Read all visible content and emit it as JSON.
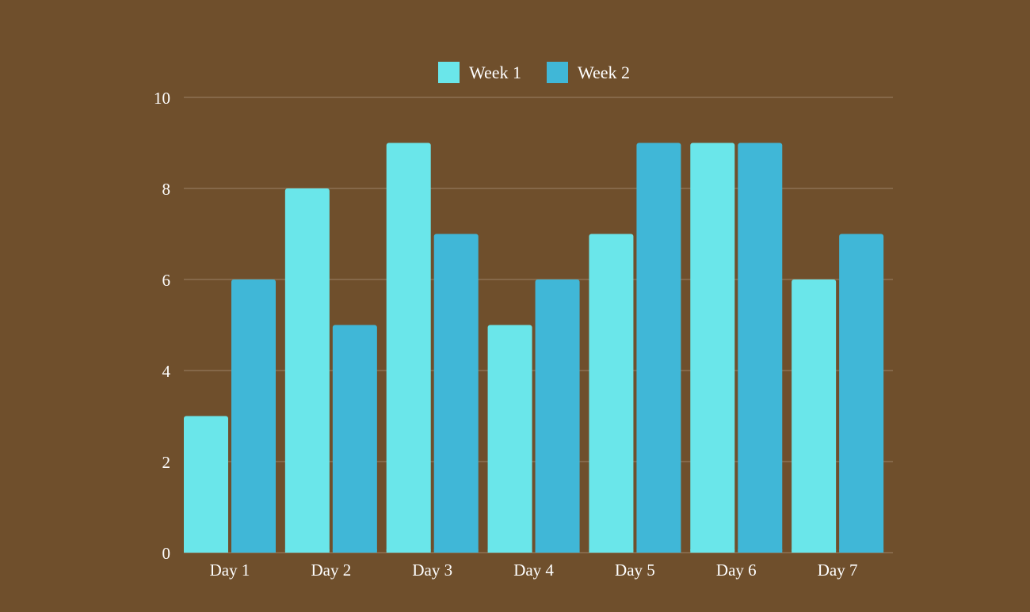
{
  "page": {
    "background_color": "#6f4f2c"
  },
  "chart_data": {
    "type": "bar",
    "title": "",
    "xlabel": "",
    "ylabel": "",
    "categories": [
      "Day 1",
      "Day 2",
      "Day 3",
      "Day 4",
      "Day 5",
      "Day 6",
      "Day 7"
    ],
    "series": [
      {
        "name": "Week 1",
        "color": "#6ae6ea",
        "values": [
          3,
          8,
          9,
          5,
          7,
          9,
          6
        ]
      },
      {
        "name": "Week 2",
        "color": "#40b7d7",
        "values": [
          6,
          5,
          7,
          6,
          9,
          9,
          7
        ]
      }
    ],
    "ylim": [
      0,
      10
    ],
    "yticks": [
      "0",
      "2",
      "4",
      "6",
      "8",
      "10"
    ],
    "grid": true,
    "legend": {
      "position": "top-center"
    }
  }
}
